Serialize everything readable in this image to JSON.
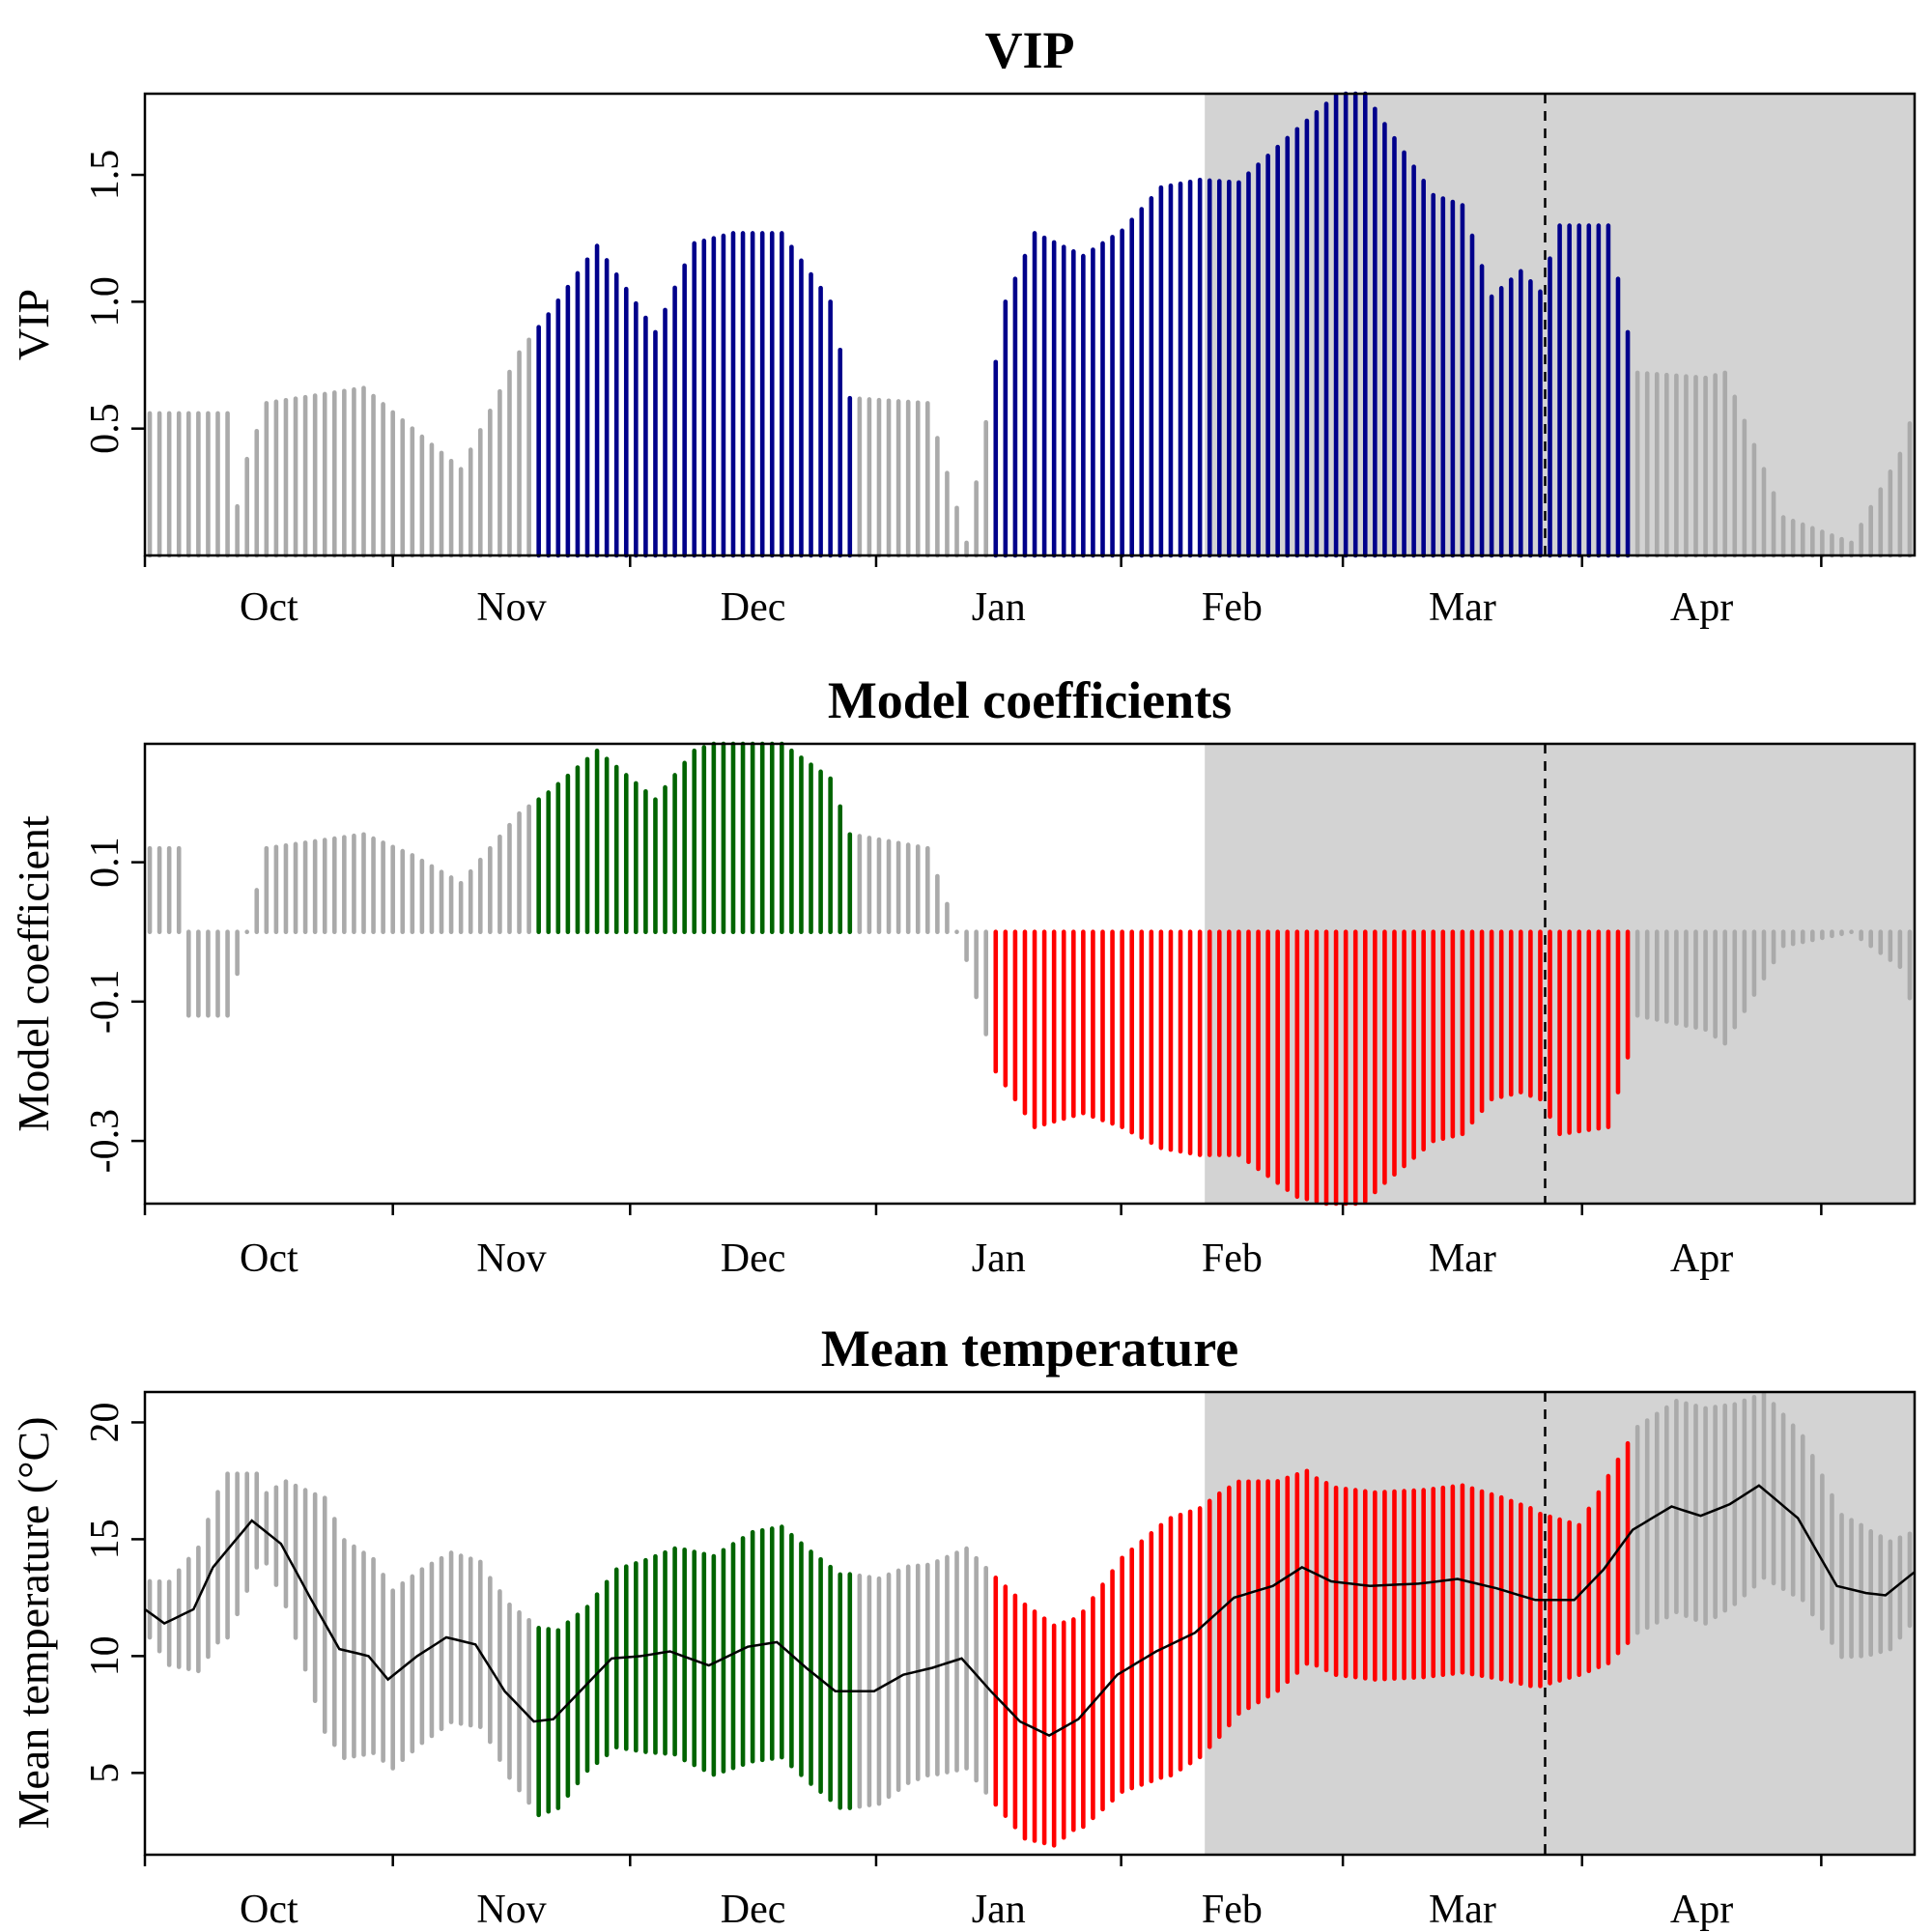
{
  "chart_data": [
    {
      "type": "bar",
      "title": "VIP",
      "xlabel": "",
      "ylabel": "VIP",
      "yticks": [
        0.5,
        1.0,
        1.5
      ],
      "ytick_labels": [
        "0.5",
        "1.0",
        "1.5"
      ],
      "ylim": [
        0,
        1.82
      ],
      "baseline": 0,
      "xlim": [
        0,
        182
      ],
      "month_labels": [
        "Oct",
        "Nov",
        "Dec",
        "Jan",
        "Feb",
        "Mar",
        "Apr"
      ],
      "month_boundaries": [
        0,
        25.5,
        49.9,
        75.2,
        100.4,
        123.2,
        147.8,
        172.4
      ],
      "shaded_region": [
        109,
        182
      ],
      "dashed_line_x": 144,
      "colors": {
        "not_important": "#aaaaaa",
        "important": "#00008b",
        "shade": "#d3d3d3"
      },
      "important_ranges": [
        [
          40,
          72
        ],
        [
          87,
          152
        ]
      ],
      "y_knots": [
        [
          0,
          0.56
        ],
        [
          8,
          0.56
        ],
        [
          8.5,
          0.1
        ],
        [
          10,
          0.38
        ],
        [
          12,
          0.6
        ],
        [
          22,
          0.66
        ],
        [
          27,
          0.5
        ],
        [
          32,
          0.34
        ],
        [
          38,
          0.8
        ],
        [
          41,
          0.95
        ],
        [
          46,
          1.22
        ],
        [
          52,
          0.88
        ],
        [
          56,
          1.23
        ],
        [
          60,
          1.27
        ],
        [
          65,
          1.27
        ],
        [
          70,
          1.0
        ],
        [
          72,
          0.62
        ],
        [
          80,
          0.6
        ],
        [
          84,
          0.05
        ],
        [
          88,
          1.0
        ],
        [
          91,
          1.27
        ],
        [
          96,
          1.18
        ],
        [
          100,
          1.28
        ],
        [
          104,
          1.45
        ],
        [
          108,
          1.48
        ],
        [
          112,
          1.47
        ],
        [
          118,
          1.68
        ],
        [
          124,
          1.88
        ],
        [
          127,
          1.7
        ],
        [
          132,
          1.42
        ],
        [
          135,
          1.38
        ],
        [
          138,
          1.02
        ],
        [
          141,
          1.12
        ],
        [
          143,
          1.04
        ],
        [
          145,
          1.3
        ],
        [
          150,
          1.3
        ],
        [
          152,
          0.88
        ],
        [
          153,
          0.72
        ],
        [
          160,
          0.7
        ],
        [
          162,
          0.72
        ],
        [
          168,
          0.15
        ],
        [
          175,
          0.05
        ],
        [
          180,
          0.4
        ],
        [
          182,
          0.64
        ]
      ]
    },
    {
      "type": "bar",
      "title": "Model coefficients",
      "xlabel": "",
      "ylabel": "Model coefficient",
      "yticks": [
        -0.3,
        -0.1,
        0.1
      ],
      "ytick_labels": [
        "-0.3",
        "-0.1",
        "0.1"
      ],
      "ylim": [
        -0.39,
        0.27
      ],
      "baseline": 0,
      "xlim": [
        0,
        182
      ],
      "month_labels": [
        "Oct",
        "Nov",
        "Dec",
        "Jan",
        "Feb",
        "Mar",
        "Apr"
      ],
      "month_boundaries": [
        0,
        25.5,
        49.9,
        75.2,
        100.4,
        123.2,
        147.8,
        172.4
      ],
      "shaded_region": [
        109,
        182
      ],
      "dashed_line_x": 144,
      "colors": {
        "not_important": "#aaaaaa",
        "positive": "#006400",
        "negative": "#ff0000",
        "shade": "#d3d3d3"
      },
      "important_ranges": [
        [
          40,
          72
        ],
        [
          87,
          152
        ]
      ],
      "y_knots": [
        [
          0,
          0.12
        ],
        [
          3,
          0.12
        ],
        [
          4,
          -0.12
        ],
        [
          8,
          -0.12
        ],
        [
          10,
          0.0
        ],
        [
          12,
          0.12
        ],
        [
          22,
          0.14
        ],
        [
          27,
          0.11
        ],
        [
          32,
          0.07
        ],
        [
          38,
          0.17
        ],
        [
          41,
          0.2
        ],
        [
          46,
          0.26
        ],
        [
          52,
          0.19
        ],
        [
          56,
          0.26
        ],
        [
          60,
          0.28
        ],
        [
          65,
          0.27
        ],
        [
          70,
          0.22
        ],
        [
          72,
          0.14
        ],
        [
          80,
          0.12
        ],
        [
          84,
          -0.04
        ],
        [
          87,
          -0.2
        ],
        [
          91,
          -0.28
        ],
        [
          96,
          -0.26
        ],
        [
          100,
          -0.28
        ],
        [
          104,
          -0.31
        ],
        [
          108,
          -0.32
        ],
        [
          112,
          -0.32
        ],
        [
          118,
          -0.38
        ],
        [
          124,
          -0.4
        ],
        [
          127,
          -0.36
        ],
        [
          132,
          -0.3
        ],
        [
          135,
          -0.29
        ],
        [
          138,
          -0.24
        ],
        [
          141,
          -0.23
        ],
        [
          143,
          -0.24
        ],
        [
          145,
          -0.29
        ],
        [
          150,
          -0.28
        ],
        [
          152,
          -0.18
        ],
        [
          153,
          -0.12
        ],
        [
          160,
          -0.14
        ],
        [
          162,
          -0.16
        ],
        [
          168,
          -0.02
        ],
        [
          175,
          0.0
        ],
        [
          180,
          -0.05
        ],
        [
          182,
          -0.14
        ]
      ]
    },
    {
      "type": "bar",
      "title": "Mean temperature",
      "xlabel": "",
      "ylabel": "Mean temperature (°C)",
      "yticks": [
        5,
        10,
        15,
        20
      ],
      "ytick_labels": [
        "5",
        "10",
        "15",
        "20"
      ],
      "ylim": [
        1.5,
        21.3
      ],
      "xlim": [
        0,
        182
      ],
      "month_labels": [
        "Oct",
        "Nov",
        "Dec",
        "Jan",
        "Feb",
        "Mar",
        "Apr"
      ],
      "month_boundaries": [
        0,
        25.5,
        49.9,
        75.2,
        100.4,
        123.2,
        147.8,
        172.4
      ],
      "shaded_region": [
        109,
        182
      ],
      "dashed_line_x": 144,
      "colors": {
        "not_important": "#aaaaaa",
        "positive": "#006400",
        "negative": "#ff0000",
        "shade": "#d3d3d3",
        "mean_line": "#000000"
      },
      "important_ranges": [
        [
          40,
          72
        ],
        [
          87,
          152
        ]
      ],
      "mean_knots": [
        [
          0,
          12.0
        ],
        [
          2,
          11.4
        ],
        [
          5,
          12.0
        ],
        [
          7,
          13.8
        ],
        [
          11,
          15.8
        ],
        [
          14,
          14.8
        ],
        [
          17,
          12.5
        ],
        [
          20,
          10.3
        ],
        [
          23,
          10.0
        ],
        [
          25,
          9.0
        ],
        [
          28,
          10.0
        ],
        [
          31,
          10.8
        ],
        [
          34,
          10.5
        ],
        [
          37,
          8.5
        ],
        [
          40,
          7.2
        ],
        [
          42,
          7.3
        ],
        [
          45,
          8.6
        ],
        [
          48,
          9.9
        ],
        [
          51,
          10.0
        ],
        [
          54,
          10.2
        ],
        [
          58,
          9.6
        ],
        [
          62,
          10.4
        ],
        [
          65,
          10.6
        ],
        [
          68,
          9.5
        ],
        [
          71,
          8.5
        ],
        [
          75,
          8.5
        ],
        [
          78,
          9.2
        ],
        [
          81,
          9.5
        ],
        [
          84,
          9.9
        ],
        [
          87,
          8.5
        ],
        [
          90,
          7.2
        ],
        [
          93,
          6.6
        ],
        [
          96,
          7.3
        ],
        [
          100,
          9.2
        ],
        [
          104,
          10.2
        ],
        [
          108,
          11.0
        ],
        [
          112,
          12.5
        ],
        [
          116,
          13.0
        ],
        [
          119,
          13.8
        ],
        [
          122,
          13.2
        ],
        [
          126,
          13.0
        ],
        [
          131,
          13.1
        ],
        [
          135,
          13.3
        ],
        [
          139,
          12.9
        ],
        [
          143,
          12.4
        ],
        [
          147,
          12.4
        ],
        [
          150,
          13.7
        ],
        [
          153,
          15.4
        ],
        [
          157,
          16.4
        ],
        [
          160,
          16.0
        ],
        [
          163,
          16.5
        ],
        [
          166,
          17.3
        ],
        [
          170,
          15.9
        ],
        [
          174,
          13.0
        ],
        [
          177,
          12.7
        ],
        [
          179,
          12.6
        ],
        [
          182,
          13.6
        ]
      ],
      "half_range_knots": [
        [
          0,
          1.2
        ],
        [
          8,
          3.5
        ],
        [
          12,
          1.5
        ],
        [
          18,
          5.0
        ],
        [
          25,
          3.8
        ],
        [
          35,
          3.5
        ],
        [
          40,
          4.0
        ],
        [
          45,
          3.5
        ],
        [
          55,
          4.5
        ],
        [
          62,
          4.9
        ],
        [
          72,
          5.0
        ],
        [
          80,
          4.5
        ],
        [
          90,
          5.0
        ],
        [
          95,
          4.5
        ],
        [
          105,
          5.5
        ],
        [
          110,
          5.2
        ],
        [
          120,
          4.0
        ],
        [
          135,
          4.0
        ],
        [
          142,
          3.8
        ],
        [
          147,
          3.2
        ],
        [
          150,
          4.0
        ],
        [
          153,
          4.4
        ],
        [
          160,
          4.6
        ],
        [
          170,
          3.5
        ],
        [
          176,
          2.8
        ],
        [
          182,
          1.8
        ]
      ]
    }
  ]
}
